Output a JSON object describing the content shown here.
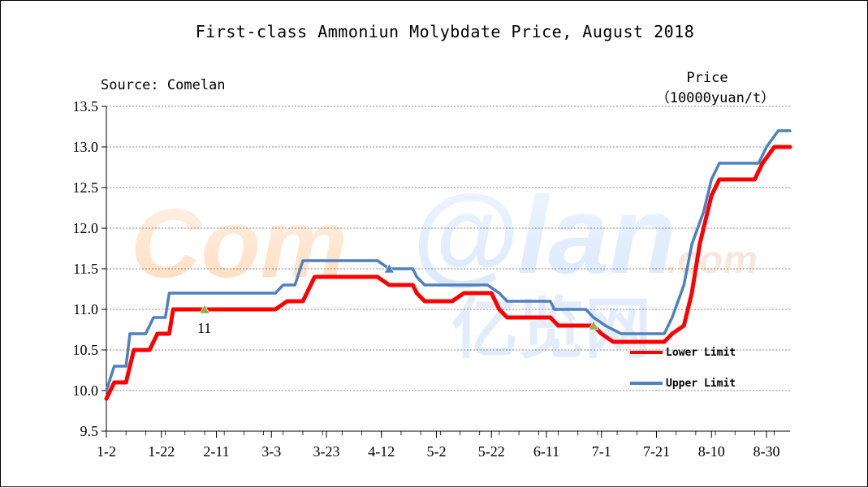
{
  "chart_data": {
    "type": "line",
    "title": "First-class Ammoniun Molybdate Price, August 2018",
    "source": "Source: Comelan",
    "ylabel_line1": "Price",
    "ylabel_line2": "（10000yuan/t）",
    "ylim": [
      9.5,
      13.5
    ],
    "y_ticks": [
      "9.5",
      "10.0",
      "10.5",
      "11.0",
      "11.5",
      "12.0",
      "12.5",
      "13.0",
      "13.5"
    ],
    "x_ticks": [
      "1-2",
      "1-22",
      "2-11",
      "3-3",
      "3-23",
      "4-12",
      "5-2",
      "5-22",
      "6-11",
      "7-1",
      "7-21",
      "8-10",
      "8-30"
    ],
    "grid": true,
    "gridlines": "horizontal dashed",
    "legend_position": "right-middle",
    "annotation": "11",
    "watermark": "Comelan 亿览网 .com",
    "x_start_label": "1-2",
    "x_end_label": "8-30",
    "series": [
      {
        "name": "Lower Limit",
        "color": "#ff0000",
        "points": [
          [
            0,
            9.9
          ],
          [
            2,
            10.1
          ],
          [
            5,
            10.1
          ],
          [
            6,
            10.3
          ],
          [
            7,
            10.5
          ],
          [
            11,
            10.5
          ],
          [
            13,
            10.7
          ],
          [
            15,
            10.7
          ],
          [
            16,
            10.7
          ],
          [
            17,
            11.0
          ],
          [
            28,
            11.0
          ],
          [
            43,
            11.0
          ],
          [
            46,
            11.1
          ],
          [
            50,
            11.1
          ],
          [
            53,
            11.4
          ],
          [
            69,
            11.4
          ],
          [
            72,
            11.3
          ],
          [
            78,
            11.3
          ],
          [
            79,
            11.2
          ],
          [
            81,
            11.1
          ],
          [
            88,
            11.1
          ],
          [
            91,
            11.2
          ],
          [
            98,
            11.2
          ],
          [
            100,
            11.0
          ],
          [
            102,
            10.9
          ],
          [
            113,
            10.9
          ],
          [
            115,
            10.8
          ],
          [
            124,
            10.8
          ],
          [
            126,
            10.7
          ],
          [
            129,
            10.6
          ],
          [
            142,
            10.6
          ],
          [
            144,
            10.7
          ],
          [
            147,
            10.8
          ],
          [
            149,
            11.2
          ],
          [
            151,
            11.8
          ],
          [
            154,
            12.4
          ],
          [
            156,
            12.6
          ],
          [
            165,
            12.6
          ],
          [
            167,
            12.8
          ],
          [
            170,
            13.0
          ],
          [
            174,
            13.0
          ]
        ]
      },
      {
        "name": "Upper Limit",
        "color": "#4f81bd",
        "points": [
          [
            0,
            10.0
          ],
          [
            2,
            10.3
          ],
          [
            5,
            10.3
          ],
          [
            6,
            10.7
          ],
          [
            10,
            10.7
          ],
          [
            12,
            10.9
          ],
          [
            15,
            10.9
          ],
          [
            16,
            11.2
          ],
          [
            28,
            11.2
          ],
          [
            43,
            11.2
          ],
          [
            45,
            11.3
          ],
          [
            48,
            11.3
          ],
          [
            50,
            11.6
          ],
          [
            69,
            11.6
          ],
          [
            72,
            11.5
          ],
          [
            78,
            11.5
          ],
          [
            79,
            11.4
          ],
          [
            81,
            11.3
          ],
          [
            97,
            11.3
          ],
          [
            100,
            11.2
          ],
          [
            102,
            11.1
          ],
          [
            113,
            11.1
          ],
          [
            114,
            11.0
          ],
          [
            122,
            11.0
          ],
          [
            124,
            10.9
          ],
          [
            127,
            10.8
          ],
          [
            131,
            10.7
          ],
          [
            142,
            10.7
          ],
          [
            144,
            10.9
          ],
          [
            147,
            11.3
          ],
          [
            149,
            11.8
          ],
          [
            152,
            12.2
          ],
          [
            154,
            12.6
          ],
          [
            156,
            12.8
          ],
          [
            166,
            12.8
          ],
          [
            168,
            13.0
          ],
          [
            171,
            13.2
          ],
          [
            174,
            13.2
          ]
        ]
      }
    ],
    "markers": [
      {
        "x": 25,
        "y": 11.0,
        "color": "#8fb04f",
        "label": "11"
      },
      {
        "x": 72,
        "y": 11.5,
        "color": "#4f81bd",
        "label": ""
      },
      {
        "x": 124,
        "y": 10.8,
        "color": "#8fb04f",
        "label": ""
      }
    ]
  }
}
